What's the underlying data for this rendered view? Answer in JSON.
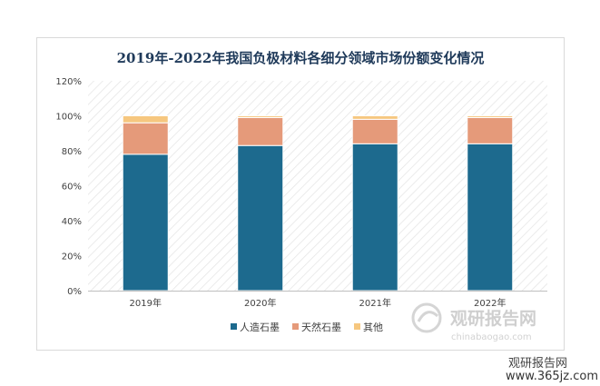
{
  "chart_data": {
    "type": "bar",
    "stacked": true,
    "title": "2019年-2022年我国负极材料各细分领域市场份额变化情况",
    "categories": [
      "2019年",
      "2020年",
      "2021年",
      "2022年"
    ],
    "series": [
      {
        "name": "人造石墨",
        "values": [
          78,
          83,
          84,
          84
        ],
        "color": "#1d6a8e"
      },
      {
        "name": "天然石墨",
        "values": [
          18,
          16,
          14,
          15
        ],
        "color": "#e59a7a"
      },
      {
        "name": "其他",
        "values": [
          4,
          1,
          2,
          1
        ],
        "color": "#f6c77f"
      }
    ],
    "ylim": [
      0,
      120
    ],
    "yticks": [
      "0%",
      "20%",
      "40%",
      "60%",
      "80%",
      "100%",
      "120%"
    ],
    "grid": false,
    "background_pattern": "diagonal-hatch",
    "legend_position": "bottom"
  },
  "watermark": {
    "brand": "观研报告网",
    "url": "chinabaogao.com",
    "brand2": "观研报告网",
    "url2": "www.365jz.com"
  },
  "colors": {
    "title": "#1f3a5a",
    "axis": "#bfbfbf"
  }
}
